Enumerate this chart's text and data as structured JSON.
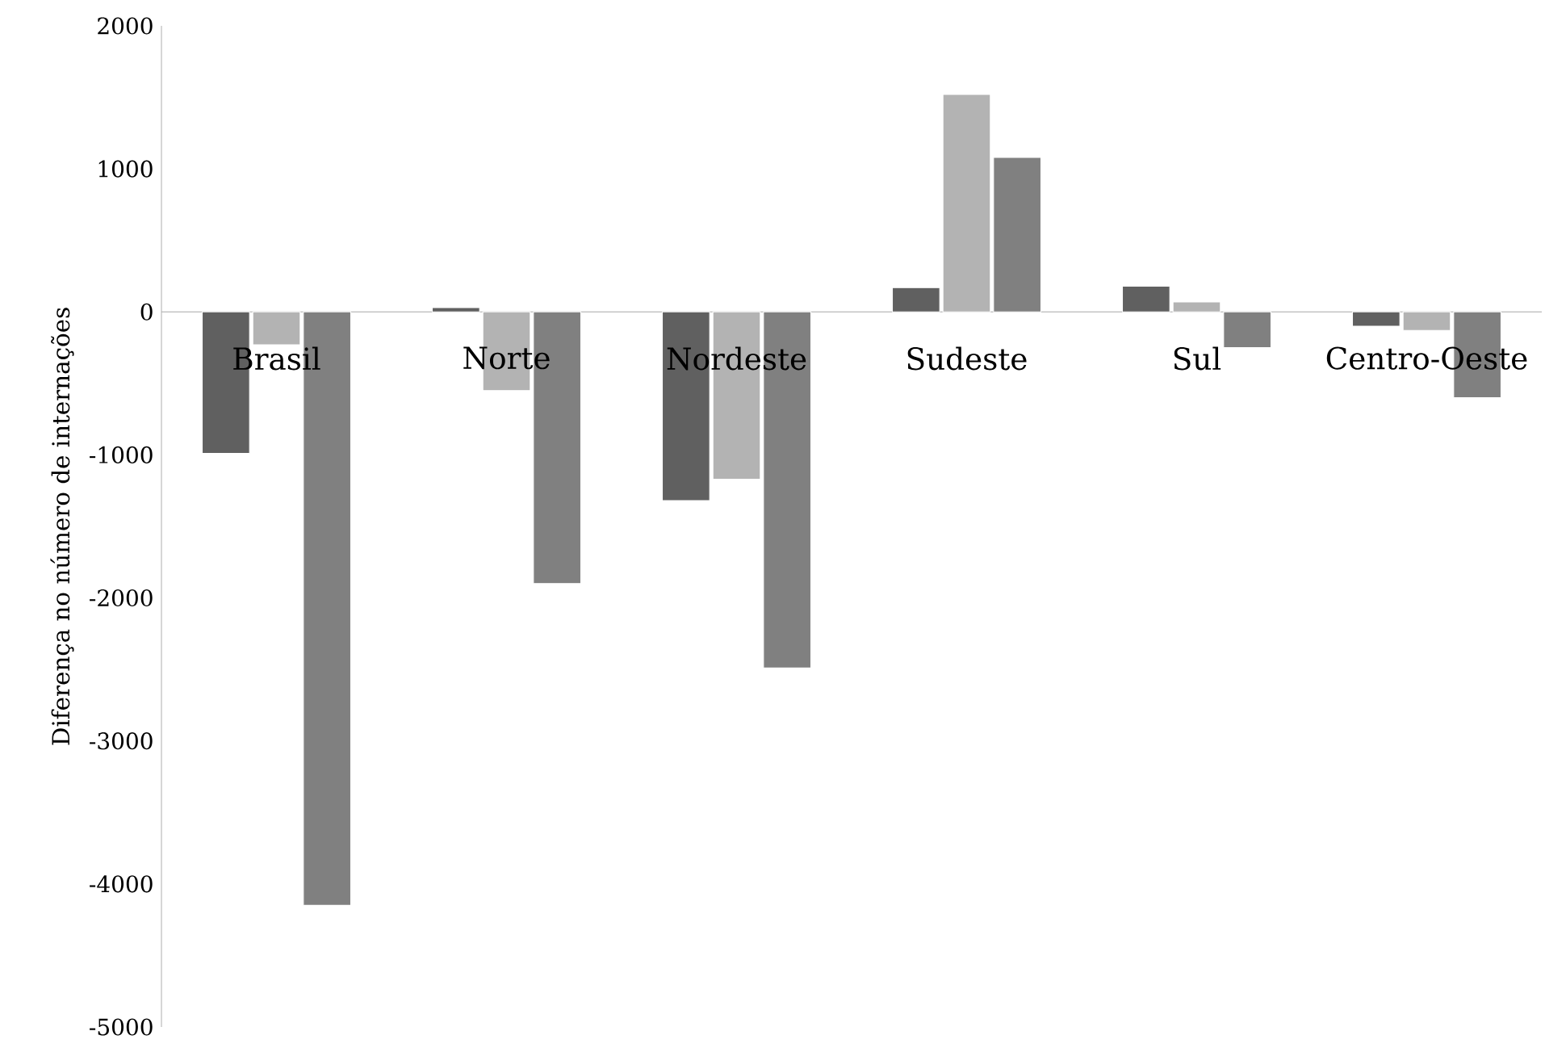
{
  "chart_data": {
    "type": "bar",
    "ylabel": "Diferença no número de internações",
    "categories": [
      "Brasil",
      "Norte",
      "Nordeste",
      "Sudeste",
      "Sul",
      "Centro-Oeste"
    ],
    "series": [
      {
        "color": "#606060",
        "values": [
          -990,
          30,
          -1320,
          170,
          180,
          -100
        ]
      },
      {
        "color": "#b3b3b3",
        "values": [
          -230,
          -550,
          -1170,
          1520,
          70,
          -130
        ]
      },
      {
        "color": "#808080",
        "values": [
          -4150,
          -1900,
          -2490,
          1080,
          -250,
          -600
        ]
      }
    ],
    "ylim": [
      -5000,
      2000
    ],
    "yticks": [
      -5000,
      -4000,
      -3000,
      -2000,
      -1000,
      0,
      1000,
      2000
    ],
    "grid": false
  }
}
